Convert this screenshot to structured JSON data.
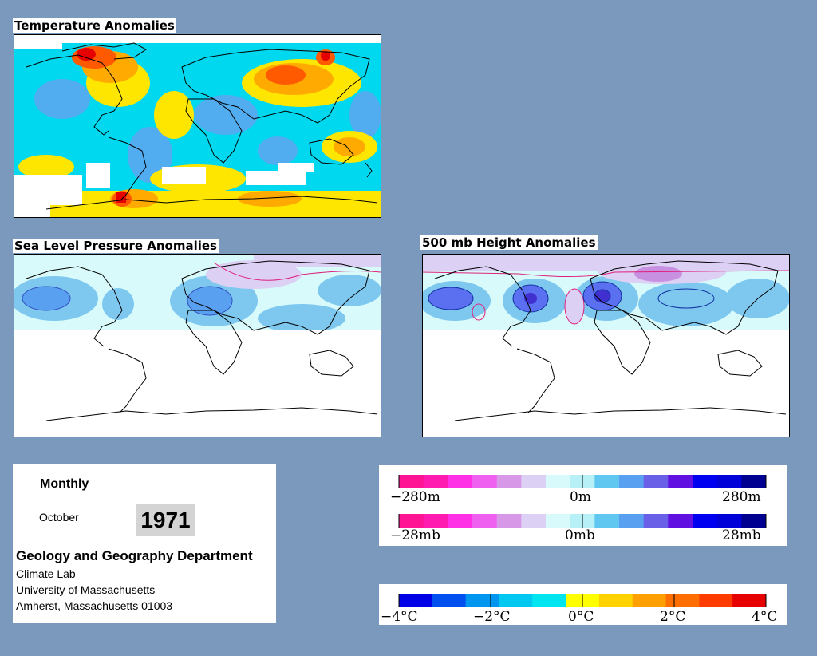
{
  "maps": {
    "temperature": {
      "title": "Temperature Anomalies"
    },
    "pressure": {
      "title": "Sea Level Pressure Anomalies"
    },
    "height": {
      "title": "500 mb Height Anomalies"
    }
  },
  "info": {
    "frequency": "Monthly",
    "month": "October",
    "year": "1971",
    "department": "Geology and Geography Department",
    "address_lines": [
      "Climate Lab",
      "University of Massachusetts",
      "Amherst, Massachusetts 01003"
    ]
  },
  "legends": {
    "height": {
      "labels": [
        "−280m",
        "0m",
        "280m"
      ]
    },
    "pressure": {
      "labels": [
        "−28mb",
        "0mb",
        "28mb"
      ]
    },
    "temperature": {
      "labels": [
        "−4°C",
        "−2°C",
        "0°C",
        "2°C",
        "4°C"
      ]
    },
    "anomaly_palette": [
      "#ff1493",
      "#ff1ab0",
      "#ff30e6",
      "#f060f0",
      "#d898e8",
      "#dcd0f4",
      "#d8fafa",
      "#b8f0f8",
      "#60c8f0",
      "#5aa0f0",
      "#6a60e8",
      "#6010e0",
      "#0000f0",
      "#0000d8",
      "#000090"
    ],
    "temperature_palette": [
      "#0000e6",
      "#0050f0",
      "#0096f0",
      "#00c8f0",
      "#00e6f0",
      "#ffff00",
      "#ffd200",
      "#ffa000",
      "#ff6e00",
      "#ff3c00",
      "#e60000"
    ]
  }
}
